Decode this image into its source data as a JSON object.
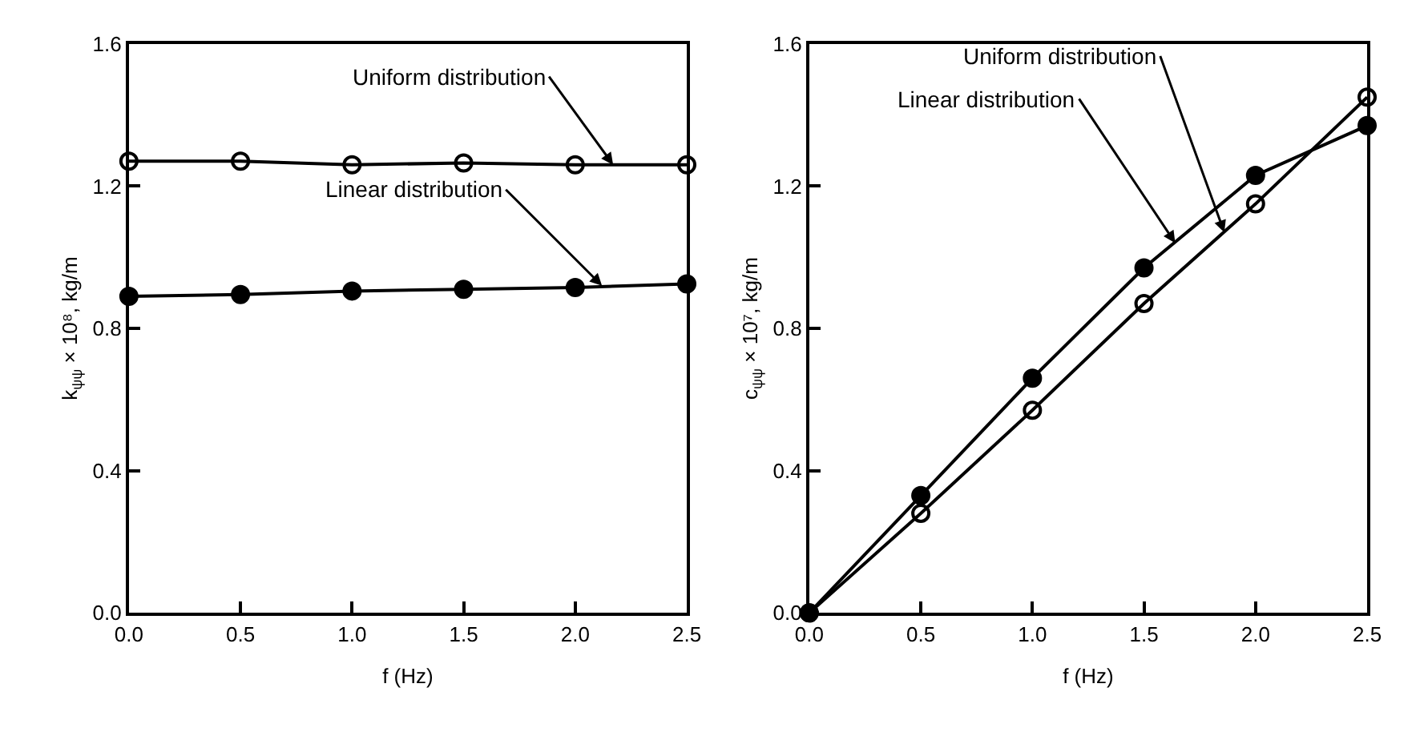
{
  "chart_data": [
    {
      "type": "line",
      "xlabel": "f (Hz)",
      "ylabel": "k$_{ψψ}$ × 10⁸, kg/m",
      "x": [
        0,
        0.5,
        1.0,
        1.5,
        2.0,
        2.5
      ],
      "series": [
        {
          "color": "#000000",
          "marker": "circle-open",
          "values": [
            1.27,
            1.27,
            1.26,
            1.265,
            1.26,
            1.26
          ]
        },
        {
          "color": "#000000",
          "marker": "circle",
          "values": [
            0.89,
            0.895,
            0.905,
            0.91,
            0.915,
            0.925
          ]
        }
      ],
      "xlim": [
        0,
        2.5
      ],
      "ylim": [
        0,
        1.6
      ],
      "xticks": [
        {
          "value": 0,
          "label": "0.0"
        },
        0.5,
        {
          "value": 1,
          "label": "1.0"
        },
        1.5,
        {
          "value": 2,
          "label": "2.0"
        },
        2.5
      ],
      "yticks": [
        {
          "value": 0,
          "label": "0.0"
        },
        0.4,
        0.8,
        1.2,
        1.6
      ],
      "annotations": [
        {
          "text": "Uniform distribution",
          "x": 2.17,
          "y": 1.26
        },
        {
          "text": "Linear distribution",
          "x": 2.12,
          "y": 0.92
        }
      ],
      "grid": false,
      "line_style": "solid"
    },
    {
      "type": "line",
      "xlabel": "f (Hz)",
      "ylabel": "c$_{ψψ}$ × 10⁷, kg/m",
      "x": [
        0,
        0.5,
        1.0,
        1.5,
        2.0,
        2.5
      ],
      "series": [
        {
          "color": "#000000",
          "marker": "circle-open",
          "values": [
            0,
            0.28,
            0.57,
            0.87,
            1.15,
            1.45
          ]
        },
        {
          "color": "#000000",
          "marker": "circle",
          "values": [
            0,
            0.33,
            0.66,
            0.97,
            1.23,
            1.37
          ]
        }
      ],
      "xlim": [
        0,
        2.5
      ],
      "ylim": [
        0,
        1.6
      ],
      "xticks": [
        {
          "value": 0,
          "label": "0.0"
        },
        0.5,
        {
          "value": 1,
          "label": "1.0"
        },
        1.5,
        {
          "value": 2,
          "label": "2.0"
        },
        2.5
      ],
      "yticks": [
        {
          "value": 0,
          "label": "0.0"
        },
        0.4,
        0.8,
        1.2,
        1.6
      ],
      "annotations": [
        {
          "text": "Uniform distribution",
          "x": 1.86,
          "y": 1.07
        },
        {
          "text": "Linear distribution",
          "x": 1.64,
          "y": 1.04
        }
      ],
      "grid": false,
      "line_style": "solid"
    }
  ]
}
